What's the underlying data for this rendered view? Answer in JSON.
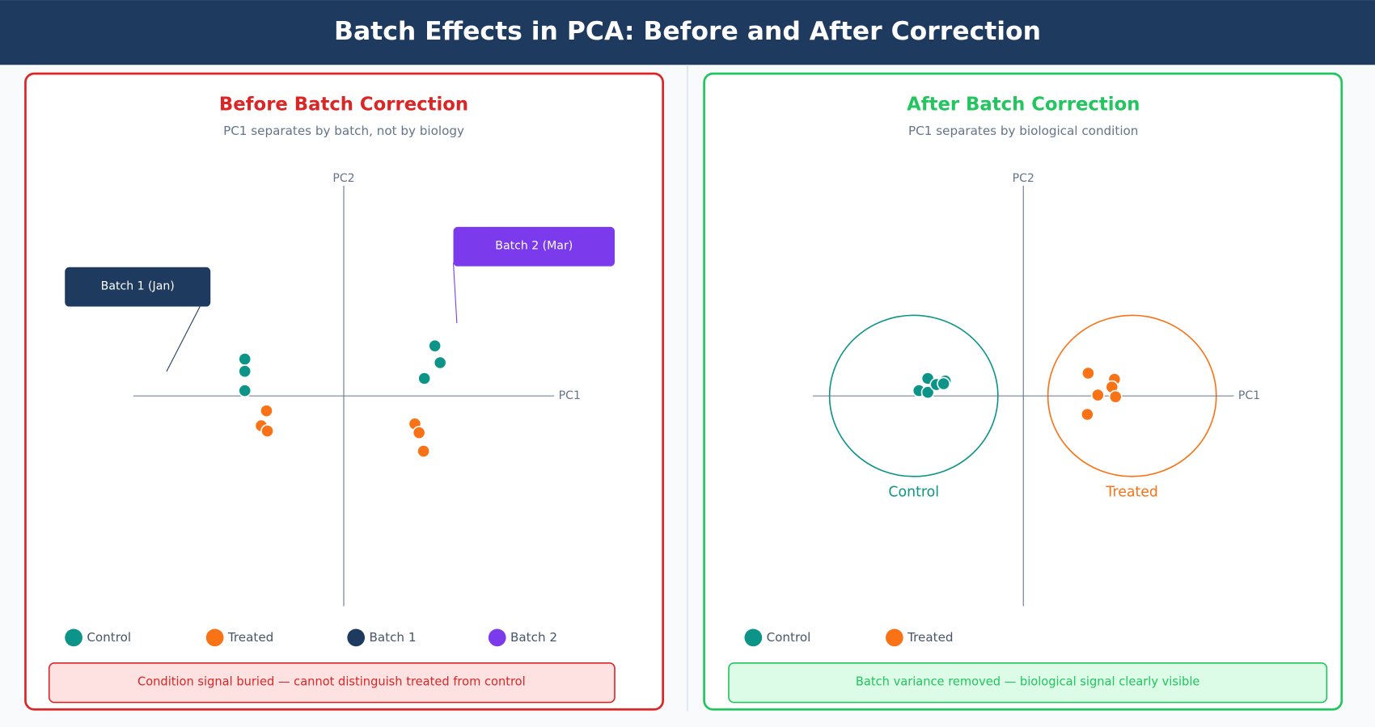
{
  "header": {
    "title": "Batch Effects in PCA: Before and After Correction"
  },
  "chart_data": [
    {
      "type": "scatter",
      "title": "Before Batch Correction",
      "subtitle": "PC1 separates by batch, not by biology",
      "x_label": "PC1",
      "y_label": "PC2",
      "xlim": [
        -10,
        10
      ],
      "ylim": [
        -10,
        10
      ],
      "series": [
        {
          "name": "Control",
          "color": "#0d9488",
          "x": [
            -4.7,
            -4.7,
            -4.7,
            4.33,
            4.58,
            3.83
          ],
          "y": [
            1.75,
            1.17,
            0.25,
            2.38,
            1.58,
            0.83
          ]
        },
        {
          "name": "Treated",
          "color": "#f97316",
          "x": [
            -3.67,
            -3.92,
            -3.63,
            3.38,
            3.58,
            3.79
          ],
          "y": [
            -0.71,
            -1.42,
            -1.67,
            -1.33,
            -1.75,
            -2.63
          ]
        }
      ],
      "batches": [
        {
          "name": "Batch 1",
          "color": "#1e3a5f",
          "label": "Batch 1 (Jan)"
        },
        {
          "name": "Batch 2",
          "color": "#7c3aed",
          "label": "Batch 2 (Mar)"
        }
      ],
      "note": "Condition signal buried — cannot distinguish treated from control"
    },
    {
      "type": "scatter",
      "title": "After Batch Correction",
      "subtitle": "PC1 separates by biological condition",
      "x_label": "PC1",
      "y_label": "PC2",
      "xlim": [
        -10,
        10
      ],
      "ylim": [
        -10,
        10
      ],
      "series": [
        {
          "name": "Control",
          "color": "#0d9488",
          "x": [
            -4.54,
            -4.96,
            -4.54,
            -4.13,
            -3.71,
            -3.79
          ],
          "y": [
            0.83,
            0.25,
            0.17,
            0.54,
            0.71,
            0.58
          ]
        },
        {
          "name": "Treated",
          "color": "#f97316",
          "x": [
            3.08,
            4.33,
            4.21,
            3.54,
            4.38,
            3.04
          ],
          "y": [
            1.08,
            0.79,
            0.42,
            0.04,
            -0.04,
            -0.88
          ]
        }
      ],
      "cluster_labels": [
        "Control",
        "Treated"
      ],
      "note": "Batch variance removed — biological signal clearly visible"
    }
  ]
}
